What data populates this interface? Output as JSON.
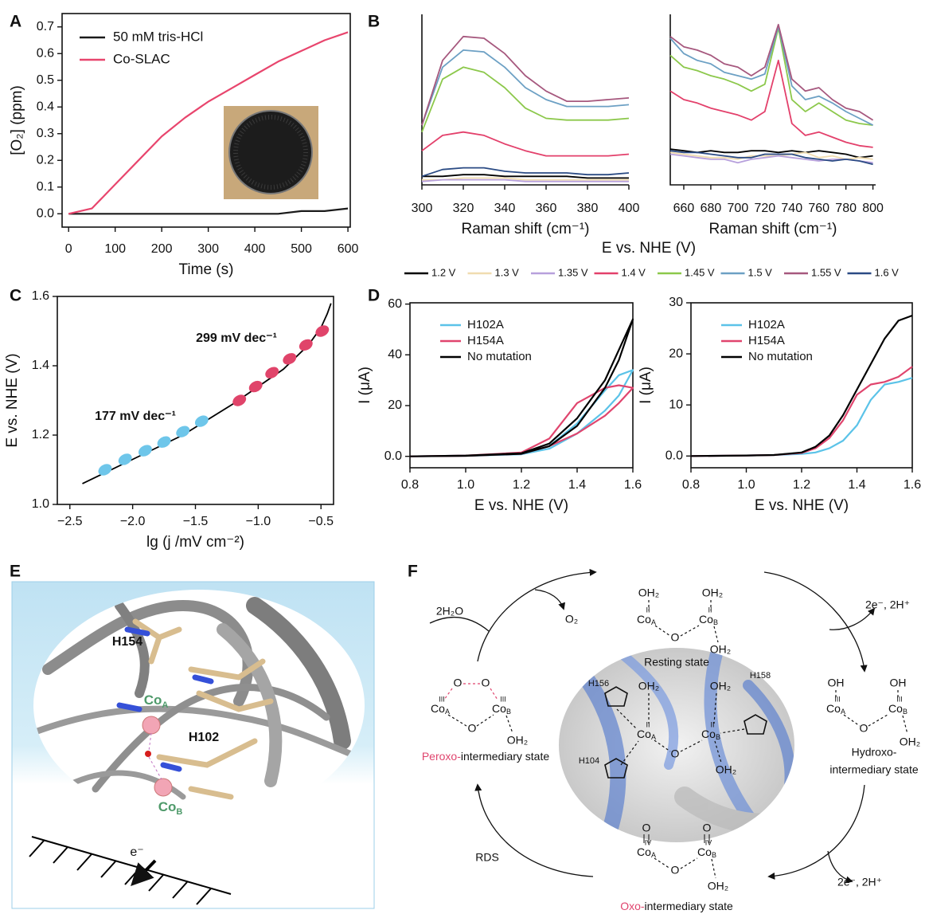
{
  "panels": [
    "A",
    "B",
    "C",
    "D",
    "E",
    "F"
  ],
  "chart_data": [
    {
      "type": "line",
      "xlabel": "Time (s)",
      "ylabel": "[O₂] (ppm)",
      "x": [
        0,
        50,
        100,
        150,
        200,
        250,
        300,
        350,
        400,
        450,
        500,
        550,
        600
      ],
      "xlim": [
        -14,
        605
      ],
      "ylim": [
        -0.05,
        0.75
      ],
      "xticks": [
        0,
        100,
        200,
        300,
        400,
        500,
        600
      ],
      "yticks": [
        {
          "value": 0,
          "label": "0.0"
        },
        0.1,
        0.2,
        0.3,
        0.4,
        0.5,
        0.6,
        0.7
      ],
      "legend": "upper left",
      "series": [
        {
          "name": "50 mM tris-HCl",
          "color": "#1a1a1a",
          "values": [
            0,
            0,
            0,
            0,
            0,
            0,
            0,
            0,
            0,
            0,
            0.01,
            0.01,
            0.02
          ]
        },
        {
          "name": "Co-SLAC",
          "color": "#e8456d",
          "values": [
            0,
            0.02,
            0.11,
            0.2,
            0.29,
            0.36,
            0.42,
            0.47,
            0.52,
            0.57,
            0.61,
            0.65,
            0.68
          ]
        }
      ]
    },
    {
      "type": "line",
      "xlabel": "Raman shift (cm⁻¹)",
      "supxlabel": "E vs. NHE (V)",
      "legend": "bottom",
      "x": [
        300,
        310,
        320,
        330,
        340,
        350,
        360,
        370,
        380,
        390,
        400
      ],
      "xlim": [
        300,
        400
      ],
      "ylim": [
        0,
        10
      ],
      "xticks": [
        300,
        320,
        340,
        360,
        380,
        400
      ],
      "series": [
        {
          "name": "1.2 V",
          "color": "#000000",
          "values": [
            0.5,
            0.5,
            0.6,
            0.6,
            0.5,
            0.5,
            0.5,
            0.5,
            0.4,
            0.4,
            0.4
          ]
        },
        {
          "name": "1.3 V",
          "color": "#f0dcb0",
          "values": [
            0.3,
            0.3,
            0.4,
            0.4,
            0.4,
            0.3,
            0.3,
            0.3,
            0.3,
            0.3,
            0.3
          ]
        },
        {
          "name": "1.35 V",
          "color": "#b7a0dc",
          "values": [
            0.2,
            0.3,
            0.3,
            0.3,
            0.3,
            0.2,
            0.2,
            0.2,
            0.2,
            0.2,
            0.2
          ]
        },
        {
          "name": "1.4 V",
          "color": "#e3406b",
          "values": [
            2.0,
            2.9,
            3.1,
            2.9,
            2.4,
            2.0,
            1.7,
            1.7,
            1.7,
            1.7,
            1.8
          ]
        },
        {
          "name": "1.45 V",
          "color": "#8cc84b",
          "values": [
            3.1,
            6.2,
            6.9,
            6.6,
            5.7,
            4.5,
            3.9,
            3.8,
            3.8,
            3.8,
            3.9
          ]
        },
        {
          "name": "1.5 V",
          "color": "#6ca0c4",
          "values": [
            3.5,
            6.9,
            7.9,
            7.8,
            6.9,
            5.7,
            5.0,
            4.6,
            4.6,
            4.6,
            4.7
          ]
        },
        {
          "name": "1.55 V",
          "color": "#a6587e",
          "values": [
            3.5,
            7.3,
            8.7,
            8.6,
            7.7,
            6.4,
            5.5,
            4.9,
            4.9,
            5.0,
            5.1
          ]
        },
        {
          "name": "1.6 V",
          "color": "#2b4b84",
          "values": [
            0.5,
            0.9,
            1.0,
            1.0,
            0.8,
            0.7,
            0.7,
            0.7,
            0.6,
            0.6,
            0.7
          ]
        }
      ]
    },
    {
      "type": "line",
      "xlabel": "Raman shift (cm⁻¹)",
      "x": [
        650,
        660,
        670,
        680,
        690,
        700,
        710,
        720,
        730,
        740,
        750,
        760,
        770,
        780,
        790,
        800
      ],
      "xlim": [
        650,
        802
      ],
      "ylim": [
        0,
        10
      ],
      "xticks": [
        660,
        680,
        700,
        720,
        740,
        760,
        780,
        800
      ],
      "series": [
        {
          "color": "#000000",
          "values": [
            2.1,
            2.0,
            1.9,
            2.0,
            1.9,
            1.9,
            2.0,
            2.0,
            1.9,
            2.0,
            1.9,
            2.0,
            1.9,
            1.8,
            1.6,
            1.7
          ]
        },
        {
          "color": "#f0dcb0",
          "values": [
            1.9,
            1.8,
            1.7,
            1.6,
            1.6,
            1.5,
            1.7,
            1.7,
            1.7,
            1.8,
            1.9,
            1.6,
            1.7,
            1.5,
            1.6,
            1.5
          ]
        },
        {
          "color": "#b7a0dc",
          "values": [
            1.8,
            1.7,
            1.6,
            1.5,
            1.5,
            1.3,
            1.5,
            1.6,
            1.7,
            1.6,
            1.5,
            1.4,
            1.5,
            1.5,
            1.4,
            1.3
          ]
        },
        {
          "color": "#e3406b",
          "values": [
            5.5,
            5.0,
            4.8,
            4.5,
            4.3,
            4.1,
            3.8,
            4.3,
            7.3,
            3.6,
            2.9,
            3.1,
            2.8,
            2.5,
            2.3,
            2.2
          ]
        },
        {
          "color": "#8cc84b",
          "values": [
            7.6,
            6.9,
            6.7,
            6.4,
            6.2,
            5.9,
            5.5,
            5.9,
            9.2,
            5.0,
            4.3,
            4.8,
            4.3,
            3.8,
            3.6,
            3.5
          ]
        },
        {
          "color": "#6ca0c4",
          "values": [
            8.6,
            7.7,
            7.3,
            7.1,
            6.6,
            6.4,
            6.2,
            6.5,
            9.3,
            5.8,
            5.0,
            5.2,
            4.8,
            4.3,
            3.9,
            3.5
          ]
        },
        {
          "color": "#a6587e",
          "values": [
            8.7,
            8.1,
            7.9,
            7.6,
            7.1,
            6.9,
            6.4,
            6.9,
            9.4,
            6.2,
            5.5,
            5.7,
            5.0,
            4.5,
            4.3,
            3.8
          ]
        },
        {
          "color": "#2b4b84",
          "values": [
            2.0,
            1.9,
            1.9,
            1.8,
            1.7,
            1.6,
            1.6,
            1.8,
            1.8,
            1.8,
            1.6,
            1.5,
            1.4,
            1.5,
            1.4,
            1.2
          ]
        }
      ]
    },
    {
      "type": "scatter",
      "xlabel": "lg (j /mV cm⁻²)",
      "ylabel": "E vs. NHE (V)",
      "xlim": [
        -2.6,
        -0.4
      ],
      "ylim": [
        1.0,
        1.6
      ],
      "xticks": [
        {
          "value": -2.5,
          "label": "−2.5"
        },
        {
          "value": -2.0,
          "label": "−2.0"
        },
        {
          "value": -1.5,
          "label": "−1.5"
        },
        {
          "value": -1.0,
          "label": "−1.0"
        },
        {
          "value": -0.5,
          "label": "−0.5"
        }
      ],
      "yticks": [
        {
          "value": 1.0,
          "label": "1.0"
        },
        1.2,
        1.4,
        1.6
      ],
      "series": [
        {
          "color": "#6ec6ea",
          "x": [
            -2.22,
            -2.06,
            -1.9,
            -1.75,
            -1.6,
            -1.45
          ],
          "values": [
            1.1,
            1.13,
            1.155,
            1.18,
            1.21,
            1.24
          ]
        },
        {
          "color": "#e0446a",
          "x": [
            -1.15,
            -1.02,
            -0.89,
            -0.75,
            -0.62,
            -0.49
          ],
          "values": [
            1.3,
            1.34,
            1.38,
            1.42,
            1.46,
            1.5
          ]
        }
      ],
      "fit": {
        "color": "#000000",
        "x": [
          -2.4,
          -2.0,
          -1.6,
          -1.2,
          -0.8,
          -0.6,
          -0.5,
          -0.45,
          -0.42
        ],
        "values": [
          1.06,
          1.13,
          1.2,
          1.29,
          1.39,
          1.46,
          1.51,
          1.55,
          1.58
        ]
      },
      "annotations": [
        {
          "text": "177 mV dec⁻¹",
          "color": "#6ec6ea"
        },
        {
          "text": "299 mV dec⁻¹",
          "color": "#e0446a"
        }
      ]
    },
    {
      "type": "line",
      "xlabel": "E vs. NHE (V)",
      "ylabel": "I (μA)",
      "legend": "upper left",
      "x": [
        0.8,
        1.0,
        1.2,
        1.3,
        1.4,
        1.5,
        1.55,
        1.6,
        1.55,
        1.5,
        1.4,
        1.3,
        1.2,
        1.0,
        0.8
      ],
      "xlim": [
        0.8,
        1.6
      ],
      "ylim": [
        -4.5,
        60.5
      ],
      "xticks": [
        0.8,
        {
          "value": 1.0,
          "label": "1.0"
        },
        1.2,
        1.4,
        1.6
      ],
      "yticks": [
        {
          "value": 0,
          "label": "0.0"
        },
        20,
        40,
        60
      ],
      "series": [
        {
          "name": "H102A",
          "color": "#5bc3e8",
          "values": [
            0,
            0.3,
            1,
            4,
            13,
            26,
            32,
            34,
            24,
            18,
            9,
            3,
            0.8,
            0.2,
            0
          ]
        },
        {
          "name": "H154A",
          "color": "#e0456e",
          "values": [
            0,
            0.3,
            1.5,
            7,
            21,
            27,
            28,
            27,
            21,
            16,
            9,
            4,
            1,
            0.2,
            0
          ]
        },
        {
          "name": "No mutation",
          "color": "#000000",
          "values": [
            0,
            0.3,
            1.2,
            5,
            15,
            30,
            42,
            54,
            38,
            27,
            12,
            4,
            1,
            0.2,
            0
          ]
        }
      ]
    },
    {
      "type": "line",
      "xlabel": "E vs. NHE (V)",
      "ylabel": "I (μA)",
      "legend": "upper left",
      "x": [
        0.8,
        1.0,
        1.1,
        1.2,
        1.25,
        1.3,
        1.35,
        1.4,
        1.45,
        1.5,
        1.55,
        1.6
      ],
      "xlim": [
        0.8,
        1.6
      ],
      "ylim": [
        -2.3,
        30
      ],
      "xticks": [
        0.8,
        {
          "value": 1.0,
          "label": "1.0"
        },
        1.2,
        1.4,
        1.6
      ],
      "yticks": [
        {
          "value": 0,
          "label": "0.0"
        },
        10,
        20,
        30
      ],
      "series": [
        {
          "name": "H102A",
          "color": "#5bc3e8",
          "values": [
            0,
            0.1,
            0.2,
            0.4,
            0.7,
            1.5,
            3,
            6,
            11,
            14,
            14.5,
            15.3
          ]
        },
        {
          "name": "H154A",
          "color": "#e0456e",
          "values": [
            0,
            0.1,
            0.2,
            0.6,
            1.5,
            3.5,
            7,
            12,
            14,
            14.5,
            15.5,
            17.5
          ]
        },
        {
          "name": "No mutation",
          "color": "#000000",
          "values": [
            0,
            0.1,
            0.2,
            0.7,
            1.8,
            4,
            8,
            13,
            18,
            23,
            26.5,
            27.5
          ]
        }
      ]
    }
  ],
  "diagram_E": {
    "residues": [
      "H154",
      "H102"
    ],
    "co": "Co",
    "sites": [
      "A",
      "B"
    ],
    "electron": "e⁻"
  },
  "diagram_F": {
    "reactant": "2H₂O",
    "product": "O₂",
    "electrons": "2e⁻, 2H⁺",
    "rds": "RDS",
    "water": "OH₂",
    "hydroxo": "OH",
    "oxygen": "O",
    "co": "Co",
    "sites": [
      "A",
      "B"
    ],
    "oxidation": [
      "II",
      "III",
      "IV"
    ],
    "resting": "Resting state",
    "hydroxo_state": [
      "Hydroxo-",
      "intermediary state"
    ],
    "oxo_state": [
      "Oxo-",
      "intermediary state"
    ],
    "peroxo_state": [
      "Peroxo-",
      "intermediary state"
    ],
    "residues": [
      "H156",
      "H158",
      "H104"
    ]
  }
}
